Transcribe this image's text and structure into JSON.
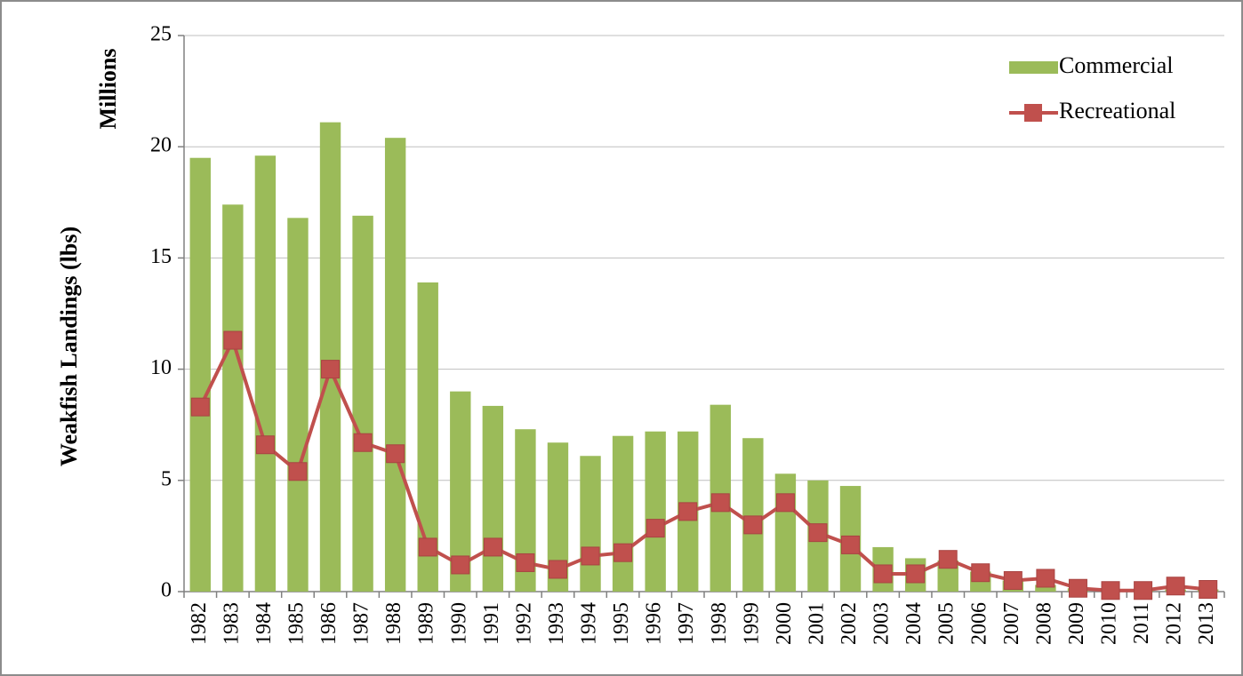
{
  "chart_data": {
    "type": "bar_line",
    "y_label": "Weakfish Landings (lbs)",
    "y_unit": "Millions",
    "categories": [
      "1982",
      "1983",
      "1984",
      "1985",
      "1986",
      "1987",
      "1988",
      "1989",
      "1990",
      "1991",
      "1992",
      "1993",
      "1994",
      "1995",
      "1996",
      "1997",
      "1998",
      "1999",
      "2000",
      "2001",
      "2002",
      "2003",
      "2004",
      "2005",
      "2006",
      "2007",
      "2008",
      "2009",
      "2010",
      "2011",
      "2012",
      "2013"
    ],
    "series": [
      {
        "name": "Commercial",
        "type": "bar",
        "color": "#9bbb59",
        "values": [
          19.5,
          17.4,
          19.6,
          16.8,
          21.1,
          16.9,
          20.4,
          13.9,
          9.0,
          8.35,
          7.3,
          6.7,
          6.1,
          7.0,
          7.2,
          7.2,
          8.4,
          6.9,
          5.3,
          5.0,
          4.75,
          2.0,
          1.5,
          1.4,
          0.9,
          0.5,
          0.3,
          0.15,
          0.1,
          0.05,
          0.1,
          0.1
        ]
      },
      {
        "name": "Recreational",
        "type": "line",
        "color": "#c0504d",
        "values": [
          8.3,
          11.3,
          6.6,
          5.4,
          10.0,
          6.7,
          6.2,
          2.0,
          1.2,
          2.0,
          1.3,
          1.0,
          1.6,
          1.75,
          2.85,
          3.6,
          4.0,
          3.0,
          4.0,
          2.65,
          2.1,
          0.8,
          0.8,
          1.45,
          0.85,
          0.5,
          0.6,
          0.15,
          0.05,
          0.05,
          0.25,
          0.1
        ]
      }
    ],
    "ylim": [
      0,
      25
    ],
    "yticks": [
      0,
      5,
      10,
      15,
      20,
      25
    ],
    "grid": true,
    "legend": "upper right"
  }
}
